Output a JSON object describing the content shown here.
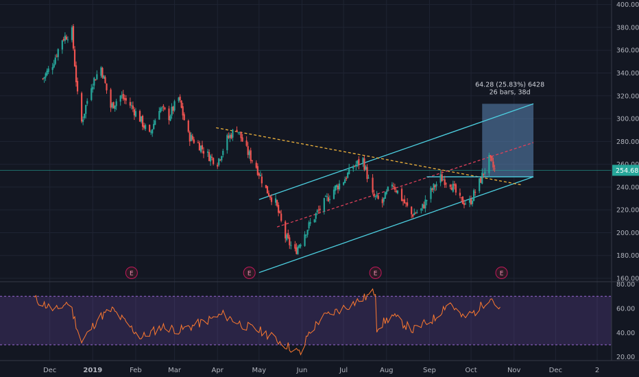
{
  "chart_data": [
    {
      "type": "candlestick",
      "symbol_price_label": "254.68",
      "y_ticks": [
        160,
        180,
        200,
        220,
        240,
        260,
        280,
        300,
        320,
        340,
        360,
        380,
        400
      ],
      "y_tick_labels": [
        "160.00",
        "180.00",
        "200.00",
        "220.00",
        "240.00",
        "260.00",
        "280.00",
        "300.00",
        "320.00",
        "340.00",
        "360.00",
        "380.00",
        "400.00"
      ],
      "ylim": [
        157,
        404
      ],
      "x_tick_labels": [
        "Dec",
        "2019",
        "Feb",
        "Mar",
        "Apr",
        "May",
        "Jun",
        "Jul",
        "Aug",
        "Sep",
        "Oct",
        "Nov",
        "Dec",
        "2"
      ],
      "price_path": [
        {
          "t": "2018-11-26",
          "v": 335
        },
        {
          "t": "2018-12-03",
          "v": 348
        },
        {
          "t": "2018-12-10",
          "v": 370
        },
        {
          "t": "2018-12-17",
          "v": 376
        },
        {
          "t": "2018-12-21",
          "v": 320
        },
        {
          "t": "2018-12-24",
          "v": 297
        },
        {
          "t": "2018-12-31",
          "v": 330
        },
        {
          "t": "2019-01-07",
          "v": 345
        },
        {
          "t": "2019-01-14",
          "v": 310
        },
        {
          "t": "2019-01-21",
          "v": 320
        },
        {
          "t": "2019-01-28",
          "v": 312
        },
        {
          "t": "2019-02-04",
          "v": 300
        },
        {
          "t": "2019-02-11",
          "v": 285
        },
        {
          "t": "2019-02-18",
          "v": 310
        },
        {
          "t": "2019-02-25",
          "v": 302
        },
        {
          "t": "2019-03-04",
          "v": 318
        },
        {
          "t": "2019-03-11",
          "v": 285
        },
        {
          "t": "2019-03-18",
          "v": 278
        },
        {
          "t": "2019-03-25",
          "v": 268
        },
        {
          "t": "2019-04-01",
          "v": 262
        },
        {
          "t": "2019-04-08",
          "v": 282
        },
        {
          "t": "2019-04-15",
          "v": 292
        },
        {
          "t": "2019-04-22",
          "v": 272
        },
        {
          "t": "2019-04-29",
          "v": 258
        },
        {
          "t": "2019-05-06",
          "v": 238
        },
        {
          "t": "2019-05-13",
          "v": 226
        },
        {
          "t": "2019-05-20",
          "v": 196
        },
        {
          "t": "2019-05-27",
          "v": 183
        },
        {
          "t": "2019-06-03",
          "v": 200
        },
        {
          "t": "2019-06-10",
          "v": 214
        },
        {
          "t": "2019-06-17",
          "v": 226
        },
        {
          "t": "2019-06-24",
          "v": 238
        },
        {
          "t": "2019-07-01",
          "v": 246
        },
        {
          "t": "2019-07-08",
          "v": 258
        },
        {
          "t": "2019-07-15",
          "v": 264
        },
        {
          "t": "2019-07-22",
          "v": 232
        },
        {
          "t": "2019-07-29",
          "v": 226
        },
        {
          "t": "2019-08-05",
          "v": 244
        },
        {
          "t": "2019-08-12",
          "v": 230
        },
        {
          "t": "2019-08-19",
          "v": 216
        },
        {
          "t": "2019-08-26",
          "v": 220
        },
        {
          "t": "2019-09-02",
          "v": 236
        },
        {
          "t": "2019-09-09",
          "v": 248
        },
        {
          "t": "2019-09-16",
          "v": 244
        },
        {
          "t": "2019-09-23",
          "v": 228
        },
        {
          "t": "2019-09-30",
          "v": 226
        },
        {
          "t": "2019-10-07",
          "v": 244
        },
        {
          "t": "2019-10-14",
          "v": 264
        },
        {
          "t": "2019-10-18",
          "v": 254.68
        }
      ],
      "earnings_markers": [
        {
          "t": "2019-01-29",
          "label": "E"
        },
        {
          "t": "2019-04-24",
          "label": "E"
        },
        {
          "t": "2019-07-24",
          "label": "E"
        },
        {
          "t": "2019-10-23",
          "label": "E"
        }
      ],
      "measure_box": {
        "t_start": "2019-10-09",
        "t_end": "2019-11-15",
        "v_low": 249,
        "v_high": 313,
        "color": "#5b86b6",
        "label_line1": "64.28 (25.83%) 6428",
        "label_line2": "26 bars, 38d"
      },
      "trendlines": [
        {
          "kind": "channel-upper",
          "t1": "2019-05-01",
          "v1": 229,
          "t2": "2019-11-15",
          "v2": 313,
          "color": "#4dd0e1",
          "style": "solid"
        },
        {
          "kind": "channel-lower",
          "t1": "2019-05-01",
          "v1": 165,
          "t2": "2019-11-15",
          "v2": 249,
          "color": "#4dd0e1",
          "style": "solid"
        },
        {
          "kind": "resistance",
          "t1": "2019-03-31",
          "v1": 292,
          "t2": "2019-11-06",
          "v2": 242,
          "color": "#f0b43c",
          "style": "dashed"
        },
        {
          "kind": "mid",
          "t1": "2019-05-14",
          "v1": 205,
          "t2": "2019-11-15",
          "v2": 279,
          "color": "#e0405a",
          "style": "dashed"
        },
        {
          "kind": "box-base",
          "t1": "2019-08-30",
          "v1": 249,
          "t2": "2019-11-15",
          "v2": 249,
          "color": "#4dd0e1",
          "style": "solid"
        }
      ]
    },
    {
      "type": "line",
      "panel": "oscillator",
      "y_ticks": [
        20,
        40,
        60,
        80
      ],
      "y_tick_labels": [
        "20.00",
        "40.00",
        "60.00",
        "80.00"
      ],
      "ylim": [
        17,
        82
      ],
      "bands": {
        "upper": 70,
        "lower": 30
      },
      "x": [
        "2018-11-20",
        "2018-12-05",
        "2018-12-15",
        "2018-12-24",
        "2019-01-05",
        "2019-01-15",
        "2019-01-25",
        "2019-02-05",
        "2019-02-20",
        "2019-03-05",
        "2019-03-20",
        "2019-04-05",
        "2019-04-20",
        "2019-05-05",
        "2019-05-20",
        "2019-06-01",
        "2019-06-05",
        "2019-06-15",
        "2019-06-30",
        "2019-07-15",
        "2019-07-24",
        "2019-07-25",
        "2019-08-05",
        "2019-08-20",
        "2019-09-05",
        "2019-09-15",
        "2019-09-25",
        "2019-10-05",
        "2019-10-15",
        "2019-10-22"
      ],
      "values": [
        68,
        58,
        66,
        32,
        52,
        59,
        48,
        36,
        45,
        42,
        48,
        55,
        46,
        40,
        30,
        22,
        38,
        52,
        60,
        68,
        74,
        44,
        54,
        42,
        52,
        66,
        52,
        58,
        70,
        58
      ]
    }
  ]
}
